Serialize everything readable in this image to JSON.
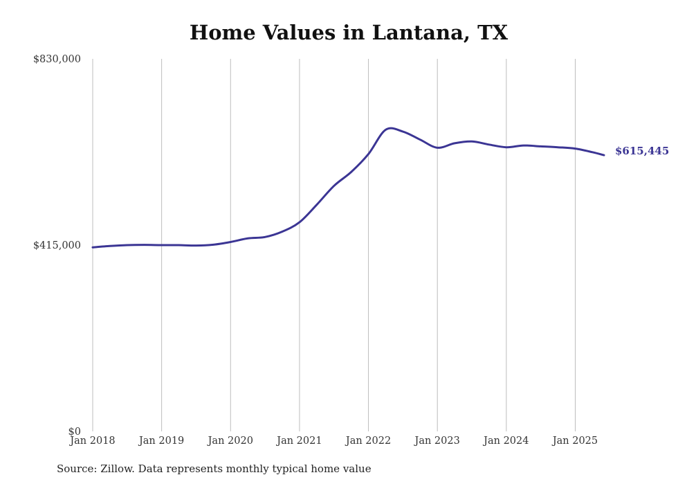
{
  "chart_data": {
    "type": "line",
    "title": "Home Values in Lantana, TX",
    "source": "Source: Zillow. Data represents monthly typical home value",
    "ylim": [
      0,
      830000
    ],
    "y_ticks": [
      {
        "value": 0,
        "label": "$0"
      },
      {
        "value": 415000,
        "label": "$415,000"
      },
      {
        "value": 830000,
        "label": "$830,000"
      }
    ],
    "x_ticks": [
      {
        "date": "2018-01",
        "label": "Jan 2018"
      },
      {
        "date": "2019-01",
        "label": "Jan 2019"
      },
      {
        "date": "2020-01",
        "label": "Jan 2020"
      },
      {
        "date": "2021-01",
        "label": "Jan 2021"
      },
      {
        "date": "2022-01",
        "label": "Jan 2022"
      },
      {
        "date": "2023-01",
        "label": "Jan 2023"
      },
      {
        "date": "2024-01",
        "label": "Jan 2024"
      },
      {
        "date": "2025-01",
        "label": "Jan 2025"
      }
    ],
    "x_range": [
      "2018-01",
      "2025-06"
    ],
    "grid": "vertical",
    "line_color": "#3b3594",
    "end_label": "$615,445",
    "series": [
      {
        "x": [
          "2018-01",
          "2018-04",
          "2018-07",
          "2018-10",
          "2019-01",
          "2019-04",
          "2019-07",
          "2019-10",
          "2020-01",
          "2020-04",
          "2020-07",
          "2020-10",
          "2021-01",
          "2021-04",
          "2021-07",
          "2021-10",
          "2022-01",
          "2022-04",
          "2022-07",
          "2022-10",
          "2023-01",
          "2023-04",
          "2023-07",
          "2023-10",
          "2024-01",
          "2024-04",
          "2024-07",
          "2024-10",
          "2025-01",
          "2025-04",
          "2025-06"
        ],
        "values": [
          410000,
          413000,
          415000,
          415500,
          415000,
          415000,
          414000,
          416000,
          422000,
          430000,
          433000,
          445000,
          466000,
          505000,
          547000,
          578000,
          618000,
          672000,
          668000,
          650000,
          632000,
          642000,
          646000,
          639000,
          633000,
          637000,
          635000,
          633000,
          630000,
          622000,
          615445
        ]
      }
    ]
  }
}
